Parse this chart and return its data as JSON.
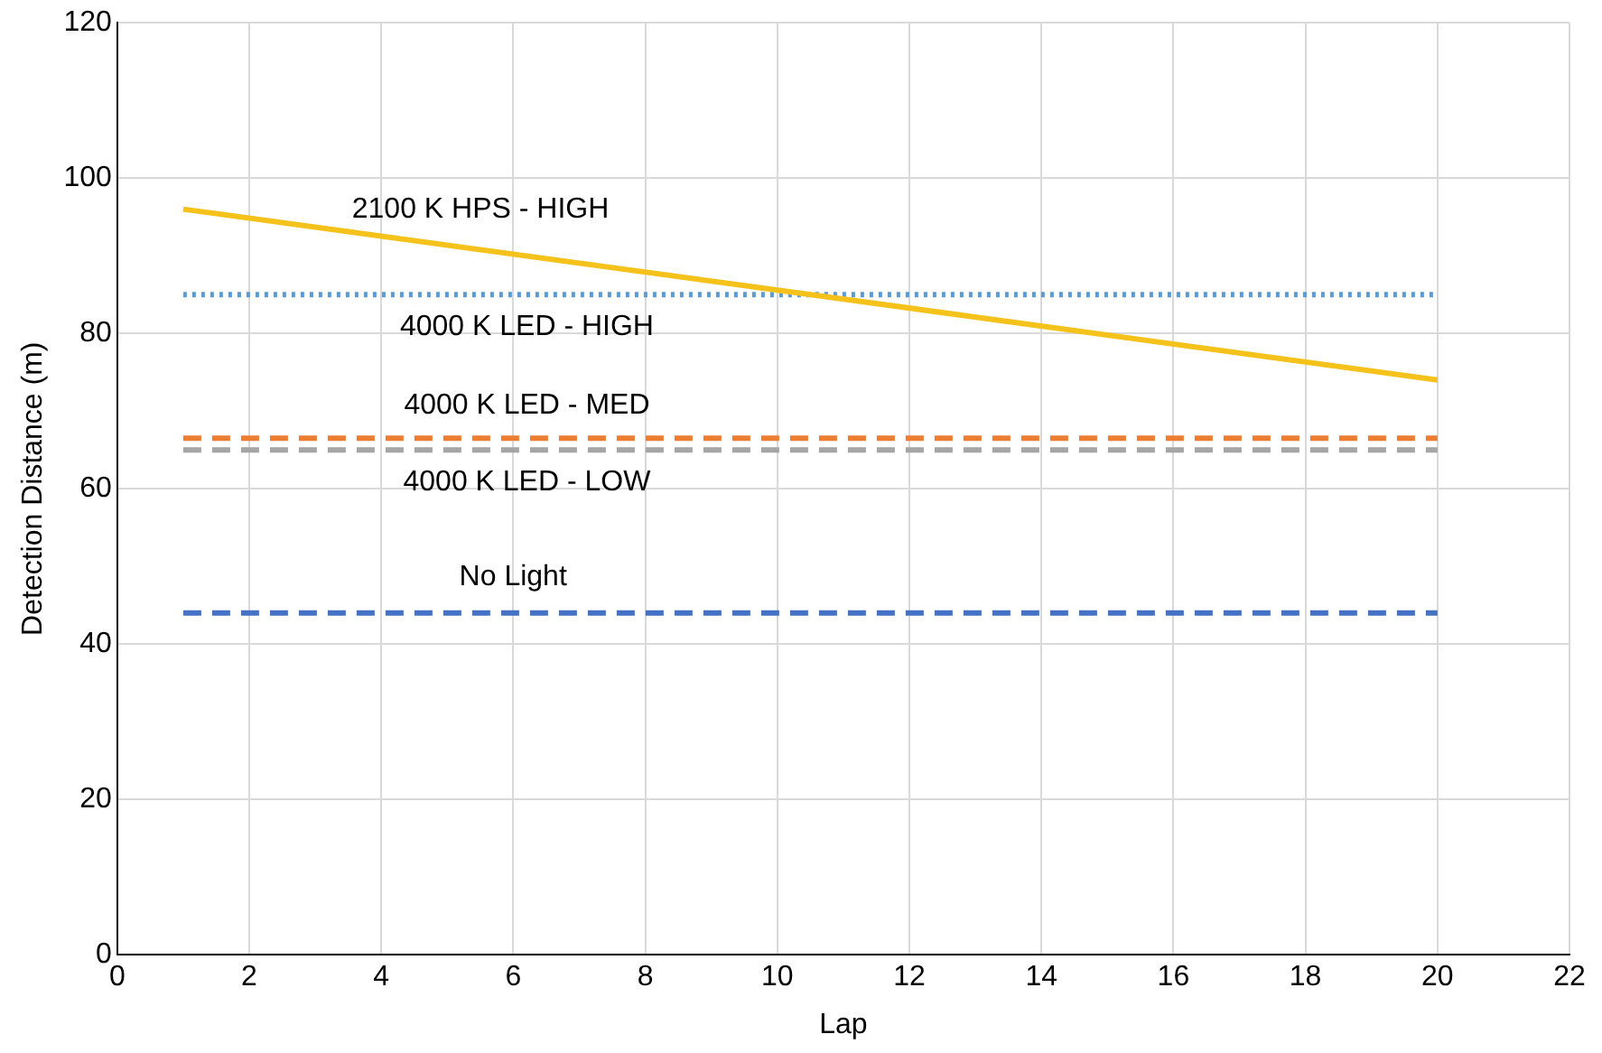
{
  "chart_data": {
    "type": "line",
    "xlabel": "Lap",
    "ylabel": "Detection Distance (m)",
    "xlim": [
      0,
      22
    ],
    "xticks": [
      0,
      2,
      4,
      6,
      8,
      10,
      12,
      14,
      16,
      18,
      20,
      22
    ],
    "ylim": [
      0,
      120
    ],
    "yticks": [
      0,
      20,
      40,
      60,
      80,
      100,
      120
    ],
    "grid": true,
    "legend": false,
    "marker": "none",
    "x": [
      1,
      20
    ],
    "series": [
      {
        "name": "2100 K HPS - HIGH",
        "color": "#f5c21b",
        "values": [
          96,
          74
        ],
        "line_style": "solid"
      },
      {
        "name": "4000 K LED - HIGH",
        "color": "#5b9bd5",
        "values": [
          85,
          85
        ],
        "line_style": "dotted"
      },
      {
        "name": "4000 K LED - MED",
        "color": "#ed7d31",
        "values": [
          66.5,
          66.5
        ],
        "line_style": "dashed"
      },
      {
        "name": "4000 K LED - LOW",
        "color": "#a5a5a5",
        "values": [
          65,
          65
        ],
        "line_style": "dashed"
      },
      {
        "name": "No Light",
        "color": "#4472c4",
        "values": [
          44,
          44
        ],
        "line_style": "dashed"
      }
    ]
  }
}
